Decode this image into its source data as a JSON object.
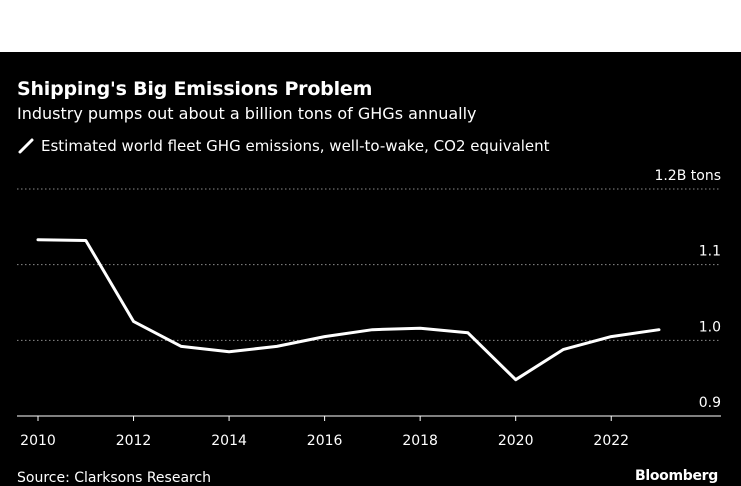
{
  "header": {
    "title": "Shipping's Big Emissions Problem",
    "subtitle": "Industry pumps out about a billion tons of GHGs annually"
  },
  "footer": {
    "source": "Source: Clarksons Research",
    "brand": "Bloomberg"
  },
  "colors": {
    "background": "#000000",
    "line": "#ffffff",
    "grid": "#8c8c8c"
  },
  "chart_data": {
    "type": "line",
    "title": "Shipping's Big Emissions Problem",
    "subtitle": "Industry pumps out about a billion tons of GHGs annually",
    "xlabel": "",
    "ylabel": "",
    "series": [
      {
        "name": "Estimated world fleet GHG emissions, well-to-wake, CO2 equivalent",
        "x": [
          2010,
          2011,
          2012,
          2013,
          2014,
          2015,
          2016,
          2017,
          2018,
          2019,
          2020,
          2021,
          2022,
          2023
        ],
        "values": [
          1.133,
          1.132,
          1.025,
          0.992,
          0.985,
          0.992,
          1.005,
          1.014,
          1.016,
          1.01,
          0.948,
          0.988,
          1.005,
          1.014
        ]
      }
    ],
    "x_ticks": [
      "2010",
      "2012",
      "2014",
      "2016",
      "2018",
      "2020",
      "2022"
    ],
    "x_tick_values": [
      2010,
      2012,
      2014,
      2016,
      2018,
      2020,
      2022
    ],
    "y_ticks": [
      "0.9",
      "1.0",
      "1.1",
      "1.2B tons"
    ],
    "y_tick_values": [
      0.9,
      1.0,
      1.1,
      1.2
    ],
    "xlim": [
      2009.5,
      2023.9
    ],
    "ylim": [
      0.9,
      1.2
    ],
    "grid": true,
    "legend_position": "top-left"
  }
}
